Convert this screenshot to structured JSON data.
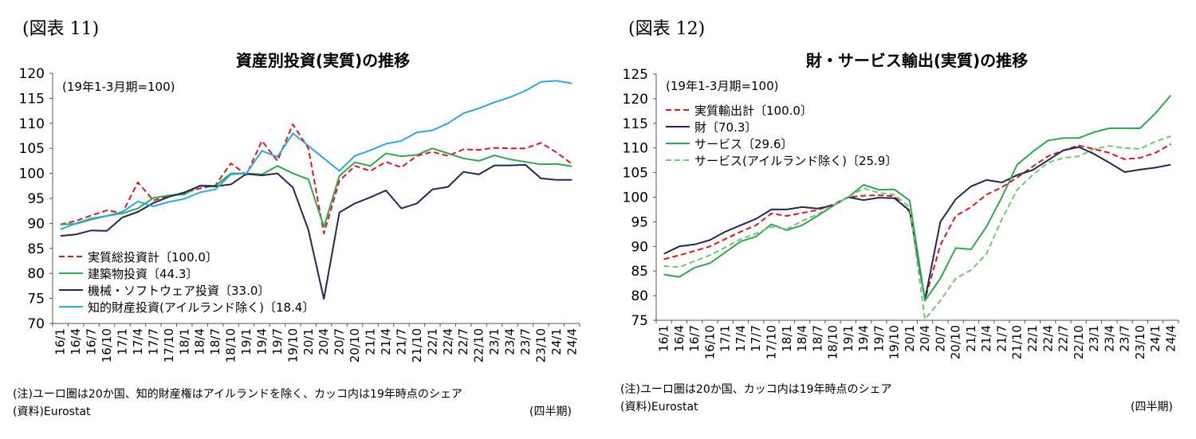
{
  "left": {
    "fig_label": "(図表 11)",
    "note": "(注)ユーロ圏は20か国、知的財産権はアイルランドを除く、カッコ内は19年時点のシェア",
    "source": "(資料)Eurostat",
    "unit": "(四半期)"
  },
  "right": {
    "fig_label": "(図表 12)",
    "note": "(注)ユーロ圏は20か国、カッコ内は19年時点のシェア",
    "source": "(資料)Eurostat",
    "unit": "(四半期)"
  },
  "chart_data": [
    {
      "type": "line",
      "title": "資産別投資(実質)の推移",
      "annotation": "(19年1-3月期=100)",
      "ylim": [
        70,
        120
      ],
      "yticks": [
        70,
        75,
        80,
        85,
        90,
        95,
        100,
        105,
        110,
        115,
        120
      ],
      "xticklabels": [
        "16/1",
        "16/4",
        "16/7",
        "16/10",
        "17/1",
        "17/4",
        "17/7",
        "17/10",
        "18/1",
        "18/4",
        "18/7",
        "18/10",
        "19/1",
        "19/4",
        "19/7",
        "19/10",
        "20/1",
        "20/4",
        "20/7",
        "20/10",
        "21/1",
        "21/4",
        "21/7",
        "21/10",
        "22/1",
        "22/4",
        "22/7",
        "22/10",
        "23/1",
        "23/4",
        "23/7",
        "23/10",
        "24/1",
        "24/4"
      ],
      "legend_position": "bottom-left",
      "grid": false,
      "series": [
        {
          "name": "実質総投資計〔100.0〕",
          "color": "#e0161e",
          "dash": true,
          "values": [
            89.8,
            90.5,
            91.6,
            92.6,
            92.1,
            98.2,
            94.6,
            95.5,
            96.1,
            97.0,
            97.6,
            102.0,
            99.7,
            106.5,
            102.5,
            109.8,
            105.0,
            88.0,
            98.5,
            101.5,
            100.5,
            102.3,
            101.2,
            103.5,
            104.3,
            103.5,
            104.8,
            104.7,
            105.1,
            105.0,
            105.0,
            106.1,
            104.2,
            101.9
          ]
        },
        {
          "name": "建築物投資〔44.3〕",
          "color": "#2ea84f",
          "dash": false,
          "values": [
            89.8,
            89.9,
            90.8,
            91.5,
            92.0,
            93.0,
            95.1,
            95.6,
            95.8,
            97.6,
            97.5,
            100.0,
            100.0,
            99.8,
            101.5,
            100.0,
            98.8,
            89.3,
            99.5,
            102.2,
            101.5,
            104.0,
            103.4,
            103.7,
            105.0,
            104.0,
            103.0,
            102.5,
            103.6,
            102.8,
            102.3,
            101.8,
            101.9,
            101.4
          ]
        },
        {
          "name": "機械・ソフトウェア投資〔33.0〕",
          "color": "#1f2a52",
          "dash": false,
          "values": [
            87.5,
            87.8,
            88.6,
            88.5,
            91.2,
            92.3,
            94.1,
            95.3,
            96.2,
            97.5,
            97.4,
            97.8,
            99.9,
            99.6,
            100.0,
            97.2,
            88.7,
            74.9,
            92.2,
            94.0,
            95.2,
            96.6,
            93.0,
            94.0,
            96.8,
            97.3,
            100.3,
            99.8,
            101.6,
            101.6,
            101.7,
            99.0,
            98.7,
            98.7
          ]
        },
        {
          "name": "知的財産投資(アイルランド除く)〔18.4〕",
          "color": "#2aa8df",
          "dash": false,
          "values": [
            88.8,
            90.0,
            91.0,
            91.5,
            92.3,
            94.4,
            93.4,
            94.3,
            94.9,
            96.2,
            96.8,
            99.8,
            100.0,
            104.5,
            103.3,
            108.0,
            105.5,
            103.0,
            100.5,
            103.5,
            104.6,
            105.9,
            106.5,
            108.2,
            108.6,
            110.0,
            112.0,
            113.0,
            114.2,
            115.2,
            116.5,
            118.3,
            118.5,
            118.0
          ]
        }
      ]
    },
    {
      "type": "line",
      "title": "財・サービス輸出(実質)の推移",
      "annotation": "(19年1-3月期=100)",
      "ylim": [
        75,
        125
      ],
      "yticks": [
        75,
        80,
        85,
        90,
        95,
        100,
        105,
        110,
        115,
        120,
        125
      ],
      "xticklabels": [
        "16/1",
        "16/4",
        "16/7",
        "16/10",
        "17/1",
        "17/4",
        "17/7",
        "17/10",
        "18/1",
        "18/4",
        "18/7",
        "18/10",
        "19/1",
        "19/4",
        "19/7",
        "19/10",
        "20/1",
        "20/4",
        "20/7",
        "20/10",
        "21/1",
        "21/4",
        "21/7",
        "21/10",
        "22/1",
        "22/4",
        "22/7",
        "22/10",
        "23/1",
        "23/4",
        "23/7",
        "23/10",
        "24/1",
        "24/4"
      ],
      "legend_position": "top-left",
      "grid": false,
      "series": [
        {
          "name": "実質輸出計〔100.0〕",
          "color": "#e0161e",
          "dash": true,
          "values": [
            87.4,
            88.2,
            89.1,
            90.0,
            91.5,
            93.0,
            94.3,
            96.7,
            96.2,
            96.8,
            97.4,
            98.5,
            100.0,
            100.3,
            100.4,
            100.2,
            97.0,
            79.2,
            90.3,
            96.2,
            98.0,
            100.5,
            102.0,
            104.0,
            106.2,
            108.3,
            109.5,
            110.5,
            109.8,
            109.0,
            107.7,
            108.0,
            109.0,
            110.8
          ]
        },
        {
          "name": "財〔70.3〕",
          "color": "#1f2a52",
          "dash": false,
          "values": [
            88.5,
            90.0,
            90.4,
            91.3,
            93.0,
            94.3,
            95.6,
            97.5,
            97.5,
            98.0,
            97.7,
            98.3,
            100.0,
            99.4,
            99.9,
            99.8,
            97.3,
            79.2,
            95.0,
            99.6,
            102.2,
            103.5,
            103.0,
            104.5,
            105.5,
            107.5,
            109.5,
            110.2,
            108.8,
            107.0,
            105.1,
            105.6,
            106.0,
            106.6
          ]
        },
        {
          "name": "サービス〔29.6〕",
          "color": "#2ea84f",
          "dash": false,
          "values": [
            84.3,
            83.8,
            85.7,
            86.6,
            88.8,
            91.0,
            92.0,
            94.5,
            93.3,
            94.3,
            96.2,
            98.2,
            100.0,
            102.5,
            101.5,
            101.6,
            99.3,
            79.0,
            83.5,
            89.7,
            89.4,
            94.0,
            100.0,
            106.6,
            109.2,
            111.5,
            112.0,
            112.0,
            113.2,
            114.0,
            114.0,
            114.0,
            117.0,
            120.7
          ]
        },
        {
          "name": "サービス(アイルランド除く)〔25.9〕",
          "color": "#74c476",
          "dash": true,
          "values": [
            86.0,
            85.8,
            87.0,
            88.2,
            89.8,
            91.5,
            92.6,
            94.0,
            93.5,
            95.2,
            96.5,
            98.3,
            100.0,
            101.8,
            100.9,
            100.5,
            98.0,
            75.2,
            79.0,
            83.5,
            85.2,
            88.5,
            95.5,
            101.5,
            104.5,
            107.0,
            108.0,
            108.3,
            109.8,
            110.4,
            110.0,
            109.8,
            111.3,
            112.4
          ]
        }
      ]
    }
  ]
}
